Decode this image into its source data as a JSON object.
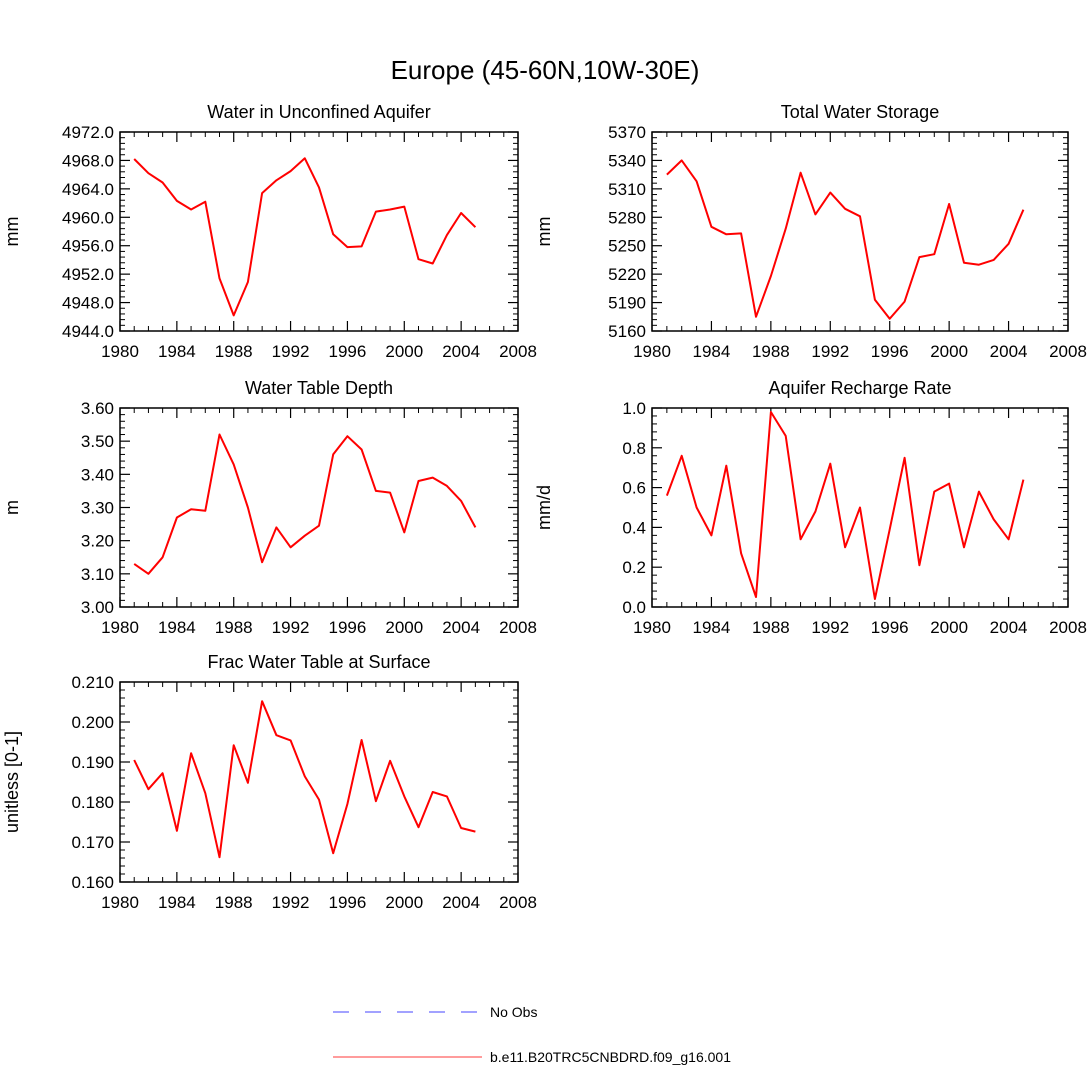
{
  "figure_title": "Europe (45-60N,10W-30E)",
  "colors": {
    "model_line": "#ff0000",
    "obs_line": "#6a6aff",
    "axis": "#000000"
  },
  "legend": [
    {
      "label": "No Obs",
      "style": "dashed",
      "color": "#6a6aff"
    },
    {
      "label": "b.e11.B20TRC5CNBDRD.f09_g16.001",
      "style": "solid",
      "color": "#ff6060"
    }
  ],
  "chart_data": [
    {
      "id": "unconfined",
      "type": "line",
      "title": "Water in Unconfined Aquifer",
      "xlabel": "",
      "ylabel": "mm",
      "xlim": [
        1980,
        2008
      ],
      "ylim": [
        4944,
        4972
      ],
      "xticks": [
        1980,
        1984,
        1988,
        1992,
        1996,
        2000,
        2004,
        2008
      ],
      "xtick_labels": [
        "1980",
        "1984",
        "1988",
        "1992",
        "1996",
        "2000",
        "2004",
        "2008"
      ],
      "yticks": [
        4944,
        4948,
        4952,
        4956,
        4960,
        4964,
        4968,
        4972
      ],
      "ytick_labels": [
        "4944.0",
        "4948.0",
        "4952.0",
        "4956.0",
        "4960.0",
        "4964.0",
        "4968.0",
        "4972.0"
      ],
      "series": [
        {
          "name": "b.e11.B20TRC5CNBDRD.f09_g16.001",
          "x": [
            1981,
            1982,
            1983,
            1984,
            1985,
            1986,
            1987,
            1988,
            1989,
            1990,
            1991,
            1992,
            1993,
            1994,
            1995,
            1996,
            1997,
            1998,
            1999,
            2000,
            2001,
            2002,
            2003,
            2004,
            2005
          ],
          "y": [
            4968.2,
            4966.2,
            4964.9,
            4962.3,
            4961.1,
            4962.2,
            4951.4,
            4946.2,
            4950.9,
            4963.4,
            4965.2,
            4966.5,
            4968.3,
            4964.2,
            4957.6,
            4955.8,
            4955.9,
            4960.8,
            4961.1,
            4961.5,
            4954.1,
            4953.5,
            4957.5,
            4960.6,
            4958.6
          ]
        }
      ]
    },
    {
      "id": "storage",
      "type": "line",
      "title": "Total Water Storage",
      "xlabel": "",
      "ylabel": "mm",
      "xlim": [
        1980,
        2008
      ],
      "ylim": [
        5160,
        5370
      ],
      "xticks": [
        1980,
        1984,
        1988,
        1992,
        1996,
        2000,
        2004,
        2008
      ],
      "xtick_labels": [
        "1980",
        "1984",
        "1988",
        "1992",
        "1996",
        "2000",
        "2004",
        "2008"
      ],
      "yticks": [
        5160,
        5190,
        5220,
        5250,
        5280,
        5310,
        5340,
        5370
      ],
      "ytick_labels": [
        "5160",
        "5190",
        "5220",
        "5250",
        "5280",
        "5310",
        "5340",
        "5370"
      ],
      "series": [
        {
          "name": "b.e11.B20TRC5CNBDRD.f09_g16.001",
          "x": [
            1981,
            1982,
            1983,
            1984,
            1985,
            1986,
            1987,
            1988,
            1989,
            1990,
            1991,
            1992,
            1993,
            1994,
            1995,
            1996,
            1997,
            1998,
            1999,
            2000,
            2001,
            2002,
            2003,
            2004,
            2005
          ],
          "y": [
            5325,
            5340,
            5318,
            5270,
            5262,
            5263,
            5175,
            5218,
            5268,
            5327,
            5283,
            5306,
            5289,
            5281,
            5193,
            5173,
            5191,
            5238,
            5241,
            5294,
            5232,
            5230,
            5235,
            5252,
            5288
          ]
        }
      ]
    },
    {
      "id": "wtd",
      "type": "line",
      "title": "Water Table Depth",
      "xlabel": "",
      "ylabel": "m",
      "xlim": [
        1980,
        2008
      ],
      "ylim": [
        3.0,
        3.6
      ],
      "xticks": [
        1980,
        1984,
        1988,
        1992,
        1996,
        2000,
        2004,
        2008
      ],
      "xtick_labels": [
        "1980",
        "1984",
        "1988",
        "1992",
        "1996",
        "2000",
        "2004",
        "2008"
      ],
      "yticks": [
        3.0,
        3.1,
        3.2,
        3.3,
        3.4,
        3.5,
        3.6
      ],
      "ytick_labels": [
        "3.00",
        "3.10",
        "3.20",
        "3.30",
        "3.40",
        "3.50",
        "3.60"
      ],
      "series": [
        {
          "name": "b.e11.B20TRC5CNBDRD.f09_g16.001",
          "x": [
            1981,
            1982,
            1983,
            1984,
            1985,
            1986,
            1987,
            1988,
            1989,
            1990,
            1991,
            1992,
            1993,
            1994,
            1995,
            1996,
            1997,
            1998,
            1999,
            2000,
            2001,
            2002,
            2003,
            2004,
            2005
          ],
          "y": [
            3.13,
            3.1,
            3.15,
            3.27,
            3.295,
            3.29,
            3.52,
            3.43,
            3.3,
            3.135,
            3.24,
            3.18,
            3.215,
            3.245,
            3.46,
            3.515,
            3.475,
            3.35,
            3.345,
            3.225,
            3.38,
            3.39,
            3.365,
            3.32,
            3.24
          ]
        }
      ]
    },
    {
      "id": "recharge",
      "type": "line",
      "title": "Aquifer Recharge Rate",
      "xlabel": "",
      "ylabel": "mm/d",
      "xlim": [
        1980,
        2008
      ],
      "ylim": [
        0.0,
        1.0
      ],
      "xticks": [
        1980,
        1984,
        1988,
        1992,
        1996,
        2000,
        2004,
        2008
      ],
      "xtick_labels": [
        "1980",
        "1984",
        "1988",
        "1992",
        "1996",
        "2000",
        "2004",
        "2008"
      ],
      "yticks": [
        0.0,
        0.2,
        0.4,
        0.6,
        0.8,
        1.0
      ],
      "ytick_labels": [
        "0.0",
        "0.2",
        "0.4",
        "0.6",
        "0.8",
        "1.0"
      ],
      "series": [
        {
          "name": "b.e11.B20TRC5CNBDRD.f09_g16.001",
          "x": [
            1981,
            1982,
            1983,
            1984,
            1985,
            1986,
            1987,
            1988,
            1989,
            1990,
            1991,
            1992,
            1993,
            1994,
            1995,
            1996,
            1997,
            1998,
            1999,
            2000,
            2001,
            2002,
            2003,
            2004,
            2005
          ],
          "y": [
            0.56,
            0.76,
            0.5,
            0.36,
            0.71,
            0.27,
            0.05,
            0.98,
            0.86,
            0.34,
            0.48,
            0.72,
            0.3,
            0.5,
            0.04,
            0.39,
            0.75,
            0.21,
            0.58,
            0.62,
            0.3,
            0.58,
            0.44,
            0.34,
            0.64
          ]
        }
      ]
    },
    {
      "id": "frac",
      "type": "line",
      "title": "Frac Water Table at Surface",
      "xlabel": "",
      "ylabel": "unitless [0-1]",
      "xlim": [
        1980,
        2008
      ],
      "ylim": [
        0.16,
        0.21
      ],
      "xticks": [
        1980,
        1984,
        1988,
        1992,
        1996,
        2000,
        2004,
        2008
      ],
      "xtick_labels": [
        "1980",
        "1984",
        "1988",
        "1992",
        "1996",
        "2000",
        "2004",
        "2008"
      ],
      "yticks": [
        0.16,
        0.17,
        0.18,
        0.19,
        0.2,
        0.21
      ],
      "ytick_labels": [
        "0.160",
        "0.170",
        "0.180",
        "0.190",
        "0.200",
        "0.210"
      ],
      "series": [
        {
          "name": "b.e11.B20TRC5CNBDRD.f09_g16.001",
          "x": [
            1981,
            1982,
            1983,
            1984,
            1985,
            1986,
            1987,
            1988,
            1989,
            1990,
            1991,
            1992,
            1993,
            1994,
            1995,
            1996,
            1997,
            1998,
            1999,
            2000,
            2001,
            2002,
            2003,
            2004,
            2005
          ],
          "y": [
            0.1905,
            0.1832,
            0.1872,
            0.1728,
            0.1922,
            0.1822,
            0.1662,
            0.1942,
            0.1848,
            0.2052,
            0.1967,
            0.1954,
            0.1864,
            0.1806,
            0.1672,
            0.1795,
            0.1955,
            0.1802,
            0.1903,
            0.1814,
            0.1737,
            0.1825,
            0.1814,
            0.1735,
            0.1726
          ]
        }
      ]
    }
  ]
}
